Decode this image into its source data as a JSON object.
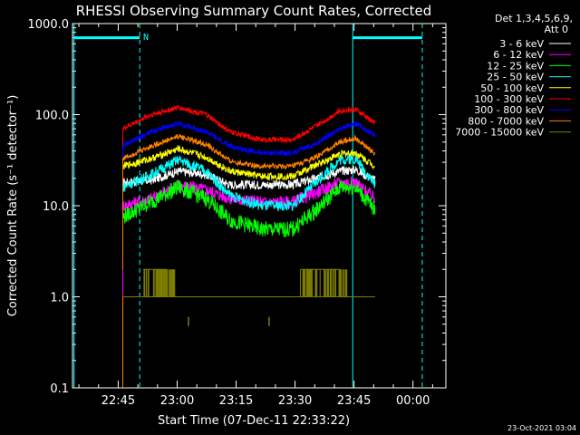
{
  "chart_data": {
    "type": "line",
    "title": "RHESSI Observing Summary Count Rates, Corrected",
    "ylabel": "Corrected Count Rate (s⁻¹ detector⁻¹)",
    "xlabel": "Start Time (07-Dec-11 22:33:22)",
    "y_scale": "log",
    "ylim": [
      0.1,
      1000
    ],
    "y_ticks": [
      "0.1",
      "1.0",
      "10.0",
      "100.0",
      "1000.0"
    ],
    "x_ticks": [
      "22:45",
      "23:00",
      "23:15",
      "23:30",
      "23:45",
      "00:00"
    ],
    "x_tick_minutes": [
      11.63,
      26.63,
      41.63,
      56.63,
      71.63,
      86.63
    ],
    "x_minor_step_min": 5,
    "xlim_minutes": [
      0,
      95
    ],
    "legend": {
      "header1": "Det 1,3,4,5,6,9,",
      "header2": "Att 0",
      "placement": "top-right outside"
    },
    "footer_date": "23-Oct-2021 03:04",
    "flag_label": "N",
    "night_markers_minutes": [
      0.4,
      17.1,
      71.3,
      89.0
    ],
    "att_bars": [
      {
        "from_min": 0.4,
        "to_min": 17.1,
        "value": 700
      },
      {
        "from_min": 71.3,
        "to_min": 89.0,
        "value": 700
      }
    ],
    "data_range_minutes": [
      12.8,
      77.0
    ],
    "series": [
      {
        "name": "3 - 6 keV",
        "color": "#ffffff",
        "noise": 0.05,
        "points": [
          [
            12.8,
            18
          ],
          [
            20,
            19
          ],
          [
            27,
            24
          ],
          [
            34,
            22
          ],
          [
            40,
            17
          ],
          [
            48,
            17
          ],
          [
            56,
            17
          ],
          [
            62,
            20
          ],
          [
            68,
            24
          ],
          [
            72,
            25
          ],
          [
            77,
            19
          ]
        ]
      },
      {
        "name": "6 - 12 keV",
        "color": "#ff00ff",
        "noise": 0.07,
        "points": [
          [
            12.8,
            10
          ],
          [
            20,
            12
          ],
          [
            27,
            17
          ],
          [
            34,
            15
          ],
          [
            40,
            12
          ],
          [
            48,
            11
          ],
          [
            56,
            11
          ],
          [
            62,
            14
          ],
          [
            68,
            18
          ],
          [
            72,
            18
          ],
          [
            77,
            12
          ]
        ]
      },
      {
        "name": "12 - 25 keV",
        "color": "#00ff00",
        "noise": 0.09,
        "points": [
          [
            12.8,
            7.5
          ],
          [
            20,
            11
          ],
          [
            27,
            16
          ],
          [
            34,
            12
          ],
          [
            40,
            7
          ],
          [
            48,
            5.5
          ],
          [
            56,
            5.5
          ],
          [
            62,
            9
          ],
          [
            68,
            16
          ],
          [
            72,
            16
          ],
          [
            77,
            9
          ]
        ]
      },
      {
        "name": "25 - 50 keV",
        "color": "#00ffff",
        "noise": 0.06,
        "points": [
          [
            12.8,
            16
          ],
          [
            20,
            22
          ],
          [
            27,
            32
          ],
          [
            34,
            24
          ],
          [
            40,
            13
          ],
          [
            48,
            10
          ],
          [
            56,
            10
          ],
          [
            62,
            18
          ],
          [
            68,
            32
          ],
          [
            72,
            33
          ],
          [
            77,
            17
          ]
        ]
      },
      {
        "name": "50 - 100 keV",
        "color": "#ffff00",
        "noise": 0.04,
        "points": [
          [
            12.8,
            27
          ],
          [
            20,
            33
          ],
          [
            27,
            42
          ],
          [
            34,
            34
          ],
          [
            40,
            24
          ],
          [
            48,
            21
          ],
          [
            56,
            21
          ],
          [
            62,
            28
          ],
          [
            68,
            37
          ],
          [
            72,
            38
          ],
          [
            77,
            27
          ]
        ]
      },
      {
        "name": "100 - 300 keV",
        "color": "#ff0000",
        "noise": 0.03,
        "points": [
          [
            12.8,
            70
          ],
          [
            20,
            100
          ],
          [
            27,
            120
          ],
          [
            34,
            100
          ],
          [
            40,
            65
          ],
          [
            48,
            53
          ],
          [
            56,
            53
          ],
          [
            62,
            75
          ],
          [
            68,
            110
          ],
          [
            72,
            115
          ],
          [
            77,
            80
          ]
        ]
      },
      {
        "name": "300 - 800 keV",
        "color": "#0000ff",
        "noise": 0.03,
        "points": [
          [
            12.8,
            45
          ],
          [
            20,
            65
          ],
          [
            27,
            80
          ],
          [
            34,
            65
          ],
          [
            40,
            45
          ],
          [
            48,
            38
          ],
          [
            56,
            38
          ],
          [
            62,
            48
          ],
          [
            68,
            70
          ],
          [
            72,
            80
          ],
          [
            77,
            60
          ]
        ]
      },
      {
        "name": "800 - 7000 keV",
        "color": "#ff8000",
        "noise": 0.03,
        "points": [
          [
            12.8,
            33
          ],
          [
            20,
            45
          ],
          [
            27,
            58
          ],
          [
            34,
            47
          ],
          [
            40,
            31
          ],
          [
            48,
            27
          ],
          [
            56,
            27
          ],
          [
            62,
            34
          ],
          [
            68,
            50
          ],
          [
            72,
            55
          ],
          [
            77,
            37
          ]
        ]
      },
      {
        "name": "7000 - 15000 keV",
        "color": "#808000",
        "noise": 0,
        "points": [
          [
            12.8,
            1
          ],
          [
            17.5,
            1
          ],
          [
            18,
            2
          ],
          [
            24,
            2
          ],
          [
            26,
            1
          ],
          [
            40,
            1
          ],
          [
            52,
            1
          ],
          [
            58,
            2
          ],
          [
            68,
            2
          ],
          [
            72,
            1
          ],
          [
            77,
            1
          ]
        ]
      }
    ]
  }
}
